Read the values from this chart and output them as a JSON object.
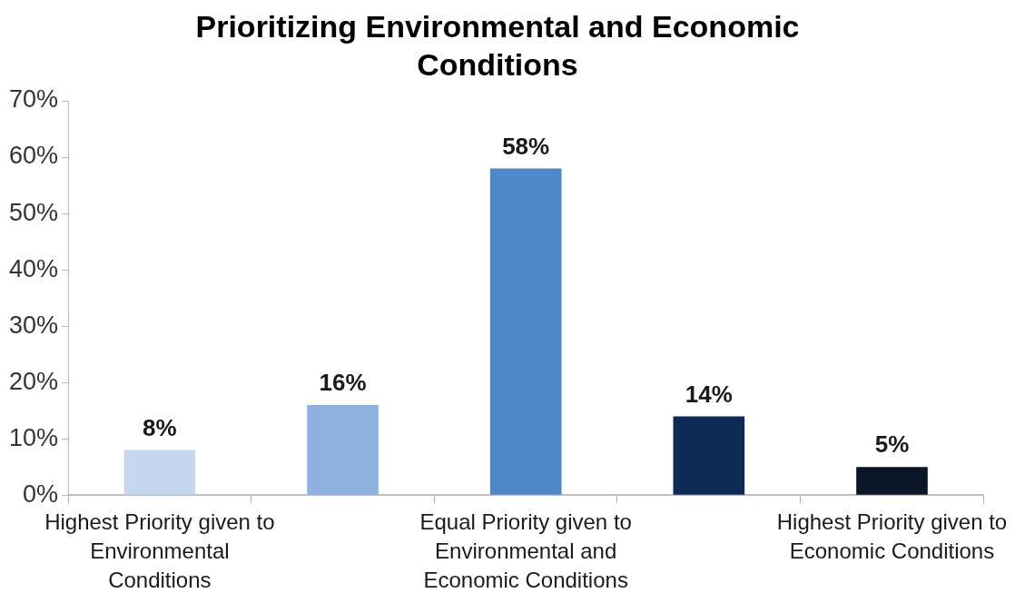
{
  "chart_data": {
    "type": "bar",
    "title": "Prioritizing Environmental and Economic Conditions",
    "categories": [
      "Highest Priority given to Environmental Conditions",
      null,
      "Equal Priority given to Environmental and Economic Conditions",
      null,
      "Highest Priority given to Economic Conditions"
    ],
    "values": [
      8,
      16,
      58,
      14,
      5
    ],
    "colors": [
      "#c5d7ee",
      "#8db0de",
      "#4f88c8",
      "#0d2b56",
      "#0b1729"
    ],
    "value_labels": [
      "8%",
      "16%",
      "58%",
      "14%",
      "5%"
    ],
    "ylim": [
      0,
      70
    ],
    "yticks": [
      {
        "value": 0,
        "label": "0%"
      },
      {
        "value": 10,
        "label": "10%"
      },
      {
        "value": 20,
        "label": "20%"
      },
      {
        "value": 30,
        "label": "30%"
      },
      {
        "value": 40,
        "label": "40%"
      },
      {
        "value": 50,
        "label": "50%"
      },
      {
        "value": 60,
        "label": "60%"
      },
      {
        "value": 70,
        "label": "70%"
      }
    ],
    "grid": false,
    "legend": false
  }
}
